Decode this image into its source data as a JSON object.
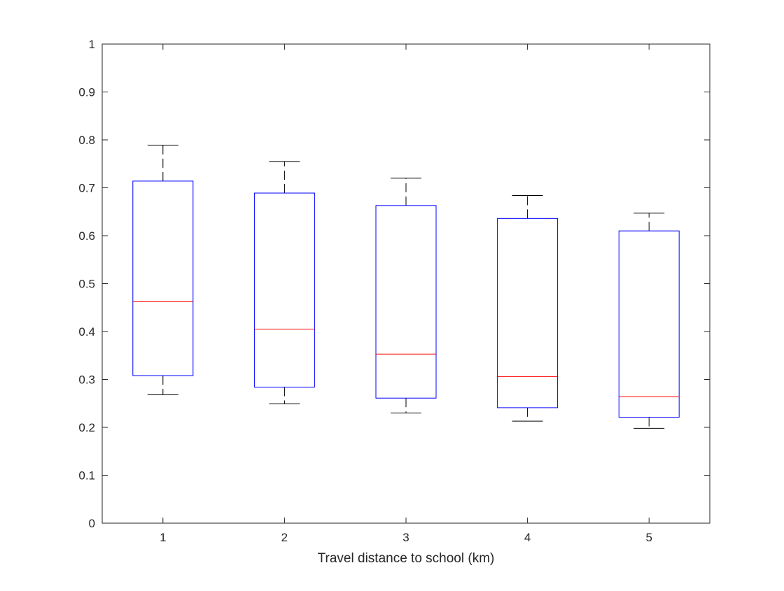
{
  "chart_data": {
    "type": "box",
    "title": "",
    "xlabel": "Travel distance to school (km)",
    "ylabel": "",
    "categories": [
      "1",
      "2",
      "3",
      "4",
      "5"
    ],
    "ylim": [
      0,
      1
    ],
    "yticks": [
      "0",
      "0.1",
      "0.2",
      "0.3",
      "0.4",
      "0.5",
      "0.6",
      "0.7",
      "0.8",
      "0.9",
      "1"
    ],
    "grid": false,
    "boxes": [
      {
        "category": "1",
        "lower_whisker": 0.268,
        "q1": 0.308,
        "median": 0.462,
        "q3": 0.714,
        "upper_whisker": 0.789
      },
      {
        "category": "2",
        "lower_whisker": 0.249,
        "q1": 0.284,
        "median": 0.405,
        "q3": 0.689,
        "upper_whisker": 0.755
      },
      {
        "category": "3",
        "lower_whisker": 0.23,
        "q1": 0.261,
        "median": 0.353,
        "q3": 0.663,
        "upper_whisker": 0.72
      },
      {
        "category": "4",
        "lower_whisker": 0.213,
        "q1": 0.241,
        "median": 0.306,
        "q3": 0.636,
        "upper_whisker": 0.684
      },
      {
        "category": "5",
        "lower_whisker": 0.198,
        "q1": 0.221,
        "median": 0.264,
        "q3": 0.61,
        "upper_whisker": 0.647
      }
    ],
    "colors": {
      "box": "#0000ff",
      "median": "#ff0000",
      "whisker": "#000000",
      "axes": "#262626"
    }
  }
}
